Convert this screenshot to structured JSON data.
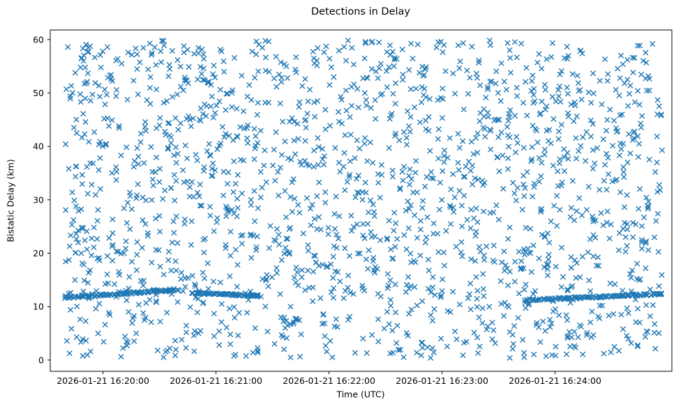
{
  "figure": {
    "background": "#ffffff"
  },
  "chart_data": {
    "type": "scatter",
    "title": "Detections in Delay",
    "xlabel": "Time (UTC)",
    "ylabel": "Bistatic Delay (km)",
    "marker": "x",
    "color": "#1f77b4",
    "legend": "none",
    "grid": false,
    "xlim_s": [
      -28,
      302
    ],
    "ylim": [
      -2.1,
      61.8
    ],
    "xticks": [
      {
        "value_s": 0,
        "label": "2026-01-21 16:20:00"
      },
      {
        "value_s": 60,
        "label": "2026-01-21 16:21:00"
      },
      {
        "value_s": 120,
        "label": "2026-01-21 16:22:00"
      },
      {
        "value_s": 180,
        "label": "2026-01-21 16:23:00"
      },
      {
        "value_s": 240,
        "label": "2026-01-21 16:24:00"
      }
    ],
    "yticks": [
      0,
      10,
      20,
      30,
      40,
      50,
      60
    ],
    "noise": {
      "seed": 20260121,
      "count": 1750,
      "x_range_s": [
        -20,
        297
      ],
      "y_range": [
        0.4,
        59.9
      ]
    },
    "tracks": [
      {
        "t_start_s": -20,
        "t_end_s": 40,
        "y_start": 11.7,
        "y_end": 13.2,
        "count": 100,
        "jitter": 0.18
      },
      {
        "t_start_s": 47,
        "t_end_s": 83,
        "y_start": 12.6,
        "y_end": 12.0,
        "count": 75,
        "jitter": 0.15
      },
      {
        "t_start_s": 224,
        "t_end_s": 297,
        "y_start": 11.2,
        "y_end": 12.4,
        "count": 120,
        "jitter": 0.18
      }
    ]
  }
}
